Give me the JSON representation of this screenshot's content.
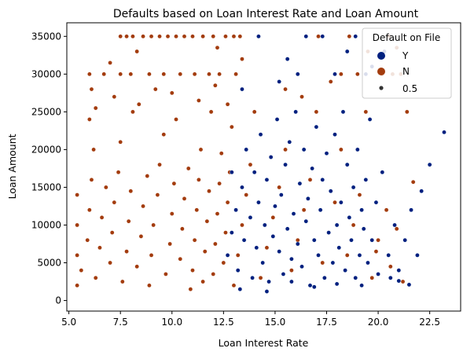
{
  "chart_data": {
    "type": "scatter",
    "title": "Defaults based on Loan Interest Rate and Loan Amount",
    "xlabel": "Loan Interest Rate",
    "ylabel": "Loan Amount",
    "xlim": [
      4.9,
      24.0
    ],
    "ylim": [
      -1400,
      36800
    ],
    "x_ticks": [
      5.0,
      7.5,
      10.0,
      12.5,
      15.0,
      17.5,
      20.0,
      22.5
    ],
    "x_tick_labels": [
      "5.0",
      "7.5",
      "10.0",
      "12.5",
      "15.0",
      "17.5",
      "20.0",
      "22.5"
    ],
    "y_ticks": [
      0,
      5000,
      10000,
      15000,
      20000,
      25000,
      30000,
      35000
    ],
    "y_tick_labels": [
      "0",
      "5000",
      "10000",
      "15000",
      "20000",
      "25000",
      "30000",
      "35000"
    ],
    "grid": false,
    "legend": {
      "title": "Default on File",
      "placement": "top-right",
      "entries": [
        {
          "label": "Y",
          "color": "#00207f"
        },
        {
          "label": "N",
          "color": "#a33c0e"
        },
        {
          "label": "0.5",
          "color": "#333333"
        }
      ]
    },
    "series": [
      {
        "name": "Y",
        "color": "#00207f",
        "points": [
          [
            12.7,
            6000
          ],
          [
            12.9,
            9000
          ],
          [
            13.1,
            12000
          ],
          [
            13.2,
            4000
          ],
          [
            13.4,
            15000
          ],
          [
            13.5,
            8000
          ],
          [
            13.6,
            20000
          ],
          [
            13.8,
            11000
          ],
          [
            13.9,
            3000
          ],
          [
            14.0,
            17000
          ],
          [
            14.1,
            7000
          ],
          [
            14.2,
            13000
          ],
          [
            14.3,
            22000
          ],
          [
            14.4,
            5000
          ],
          [
            14.5,
            10000
          ],
          [
            14.6,
            16000
          ],
          [
            14.7,
            2500
          ],
          [
            14.8,
            19000
          ],
          [
            14.9,
            8500
          ],
          [
            15.0,
            12500
          ],
          [
            15.1,
            24000
          ],
          [
            15.2,
            6500
          ],
          [
            15.3,
            14000
          ],
          [
            15.4,
            3500
          ],
          [
            15.5,
            18000
          ],
          [
            15.6,
            9500
          ],
          [
            15.7,
            21000
          ],
          [
            15.8,
            5500
          ],
          [
            15.9,
            11500
          ],
          [
            16.0,
            25000
          ],
          [
            16.1,
            7500
          ],
          [
            16.2,
            15500
          ],
          [
            16.3,
            4500
          ],
          [
            16.4,
            20000
          ],
          [
            16.5,
            10500
          ],
          [
            16.6,
            13500
          ],
          [
            16.7,
            2000
          ],
          [
            16.8,
            17500
          ],
          [
            16.9,
            8000
          ],
          [
            17.0,
            23000
          ],
          [
            17.1,
            6000
          ],
          [
            17.2,
            12000
          ],
          [
            17.3,
            16000
          ],
          [
            17.4,
            3000
          ],
          [
            17.5,
            19500
          ],
          [
            17.6,
            9000
          ],
          [
            17.7,
            14500
          ],
          [
            17.8,
            5000
          ],
          [
            17.9,
            22000
          ],
          [
            18.0,
            10000
          ],
          [
            18.1,
            7000
          ],
          [
            18.2,
            13000
          ],
          [
            18.3,
            25000
          ],
          [
            18.4,
            4000
          ],
          [
            18.5,
            18000
          ],
          [
            18.6,
            11000
          ],
          [
            18.7,
            8000
          ],
          [
            18.8,
            15000
          ],
          [
            18.9,
            3000
          ],
          [
            19.0,
            20000
          ],
          [
            19.1,
            6000
          ],
          [
            19.2,
            12000
          ],
          [
            19.3,
            9500
          ],
          [
            19.4,
            16000
          ],
          [
            19.5,
            5000
          ],
          [
            19.6,
            24000
          ],
          [
            19.7,
            8000
          ],
          [
            19.9,
            13000
          ],
          [
            20.0,
            3500
          ],
          [
            20.2,
            17000
          ],
          [
            20.5,
            6000
          ],
          [
            20.8,
            10000
          ],
          [
            21.0,
            4000
          ],
          [
            21.3,
            8000
          ],
          [
            21.6,
            12000
          ],
          [
            22.1,
            14500
          ],
          [
            22.5,
            18000
          ],
          [
            23.2,
            22300
          ],
          [
            21.9,
            6000
          ],
          [
            20.6,
            3000
          ],
          [
            19.4,
            30000
          ],
          [
            20.3,
            33000
          ],
          [
            18.9,
            35000
          ],
          [
            16.5,
            35000
          ],
          [
            17.3,
            35000
          ],
          [
            15.6,
            32000
          ],
          [
            14.2,
            35000
          ],
          [
            13.4,
            28000
          ],
          [
            15.2,
            29000
          ],
          [
            16.1,
            30000
          ],
          [
            17.9,
            30000
          ],
          [
            19.7,
            31000
          ],
          [
            18.5,
            33000
          ],
          [
            12.9,
            17000
          ],
          [
            13.3,
            1500
          ],
          [
            14.6,
            1200
          ],
          [
            15.8,
            2500
          ],
          [
            16.9,
            1800
          ],
          [
            18.0,
            2200
          ],
          [
            19.2,
            2000
          ],
          [
            21.0,
            2600
          ],
          [
            21.5,
            2100
          ]
        ]
      },
      {
        "name": "N",
        "color": "#a33c0e",
        "points": [
          [
            5.4,
            2000
          ],
          [
            5.4,
            6000
          ],
          [
            5.4,
            10000
          ],
          [
            5.4,
            14000
          ],
          [
            5.6,
            4000
          ],
          [
            5.9,
            8000
          ],
          [
            6.0,
            12000
          ],
          [
            6.1,
            16000
          ],
          [
            6.2,
            20000
          ],
          [
            6.3,
            3000
          ],
          [
            6.5,
            7000
          ],
          [
            6.6,
            11000
          ],
          [
            6.8,
            15000
          ],
          [
            7.0,
            5000
          ],
          [
            7.1,
            9000
          ],
          [
            7.2,
            13000
          ],
          [
            7.4,
            17000
          ],
          [
            7.5,
            21000
          ],
          [
            7.6,
            2500
          ],
          [
            7.8,
            6500
          ],
          [
            7.9,
            10500
          ],
          [
            8.0,
            14500
          ],
          [
            8.1,
            25000
          ],
          [
            8.3,
            4500
          ],
          [
            8.5,
            8500
          ],
          [
            8.6,
            12500
          ],
          [
            8.8,
            16500
          ],
          [
            8.9,
            2000
          ],
          [
            9.0,
            6000
          ],
          [
            9.1,
            10000
          ],
          [
            9.3,
            14000
          ],
          [
            9.4,
            18000
          ],
          [
            9.6,
            22000
          ],
          [
            9.7,
            3500
          ],
          [
            9.9,
            7500
          ],
          [
            10.0,
            11500
          ],
          [
            10.1,
            15500
          ],
          [
            10.2,
            24000
          ],
          [
            10.4,
            5500
          ],
          [
            10.5,
            9500
          ],
          [
            10.6,
            13500
          ],
          [
            10.8,
            17500
          ],
          [
            10.9,
            1500
          ],
          [
            11.0,
            4000
          ],
          [
            11.1,
            8000
          ],
          [
            11.2,
            12000
          ],
          [
            11.3,
            16000
          ],
          [
            11.4,
            20000
          ],
          [
            11.5,
            2500
          ],
          [
            11.6,
            6500
          ],
          [
            11.7,
            10500
          ],
          [
            11.8,
            14500
          ],
          [
            11.9,
            25000
          ],
          [
            12.0,
            3500
          ],
          [
            12.1,
            7500
          ],
          [
            12.2,
            11500
          ],
          [
            12.3,
            15500
          ],
          [
            12.4,
            19500
          ],
          [
            12.5,
            5000
          ],
          [
            12.6,
            9000
          ],
          [
            12.7,
            13000
          ],
          [
            12.8,
            17000
          ],
          [
            12.9,
            23000
          ],
          [
            13.0,
            2000
          ],
          [
            13.2,
            6000
          ],
          [
            13.4,
            10000
          ],
          [
            13.6,
            14000
          ],
          [
            13.8,
            18000
          ],
          [
            14.0,
            25000
          ],
          [
            14.3,
            3000
          ],
          [
            14.6,
            7000
          ],
          [
            14.9,
            11000
          ],
          [
            15.2,
            15000
          ],
          [
            15.5,
            20000
          ],
          [
            15.8,
            4000
          ],
          [
            16.1,
            8000
          ],
          [
            16.4,
            12000
          ],
          [
            16.7,
            16000
          ],
          [
            17.0,
            25000
          ],
          [
            17.3,
            5000
          ],
          [
            17.6,
            9000
          ],
          [
            17.9,
            13000
          ],
          [
            18.2,
            20000
          ],
          [
            18.5,
            6000
          ],
          [
            18.8,
            10000
          ],
          [
            19.1,
            14000
          ],
          [
            19.4,
            25000
          ],
          [
            19.7,
            3000
          ],
          [
            20.0,
            8000
          ],
          [
            20.4,
            12000
          ],
          [
            20.9,
            9500
          ],
          [
            21.2,
            2500
          ],
          [
            21.7,
            15700
          ],
          [
            20.6,
            4500
          ],
          [
            19.9,
            6500
          ],
          [
            21.4,
            25000
          ],
          [
            7.5,
            35000
          ],
          [
            7.8,
            35000
          ],
          [
            8.1,
            35000
          ],
          [
            8.3,
            33000
          ],
          [
            8.6,
            35000
          ],
          [
            9.0,
            35000
          ],
          [
            9.4,
            35000
          ],
          [
            9.8,
            35000
          ],
          [
            10.2,
            35000
          ],
          [
            10.6,
            35000
          ],
          [
            11.0,
            35000
          ],
          [
            11.5,
            35000
          ],
          [
            12.0,
            35000
          ],
          [
            12.6,
            35000
          ],
          [
            13.0,
            35000
          ],
          [
            13.3,
            35000
          ],
          [
            6.0,
            30000
          ],
          [
            6.7,
            30000
          ],
          [
            7.5,
            30000
          ],
          [
            8.0,
            30000
          ],
          [
            8.9,
            30000
          ],
          [
            9.6,
            30000
          ],
          [
            10.4,
            30000
          ],
          [
            11.1,
            30000
          ],
          [
            11.8,
            30000
          ],
          [
            12.3,
            30000
          ],
          [
            13.1,
            30000
          ],
          [
            6.1,
            28000
          ],
          [
            7.2,
            27000
          ],
          [
            8.4,
            26000
          ],
          [
            9.2,
            28000
          ],
          [
            10.0,
            27500
          ],
          [
            11.3,
            26500
          ],
          [
            12.1,
            28500
          ],
          [
            12.7,
            26000
          ],
          [
            13.4,
            32000
          ],
          [
            6.0,
            24000
          ],
          [
            6.3,
            25500
          ],
          [
            7.0,
            31500
          ],
          [
            12.2,
            33500
          ],
          [
            17.1,
            35000
          ],
          [
            18.6,
            35000
          ],
          [
            19.5,
            33000
          ],
          [
            20.2,
            30000
          ],
          [
            18.2,
            30000
          ],
          [
            20.7,
            30000
          ],
          [
            21.1,
            30000
          ],
          [
            19.0,
            30000
          ],
          [
            17.7,
            29000
          ],
          [
            20.5,
            35000
          ],
          [
            20.9,
            33500
          ],
          [
            16.3,
            27000
          ],
          [
            15.5,
            28000
          ]
        ]
      }
    ]
  }
}
